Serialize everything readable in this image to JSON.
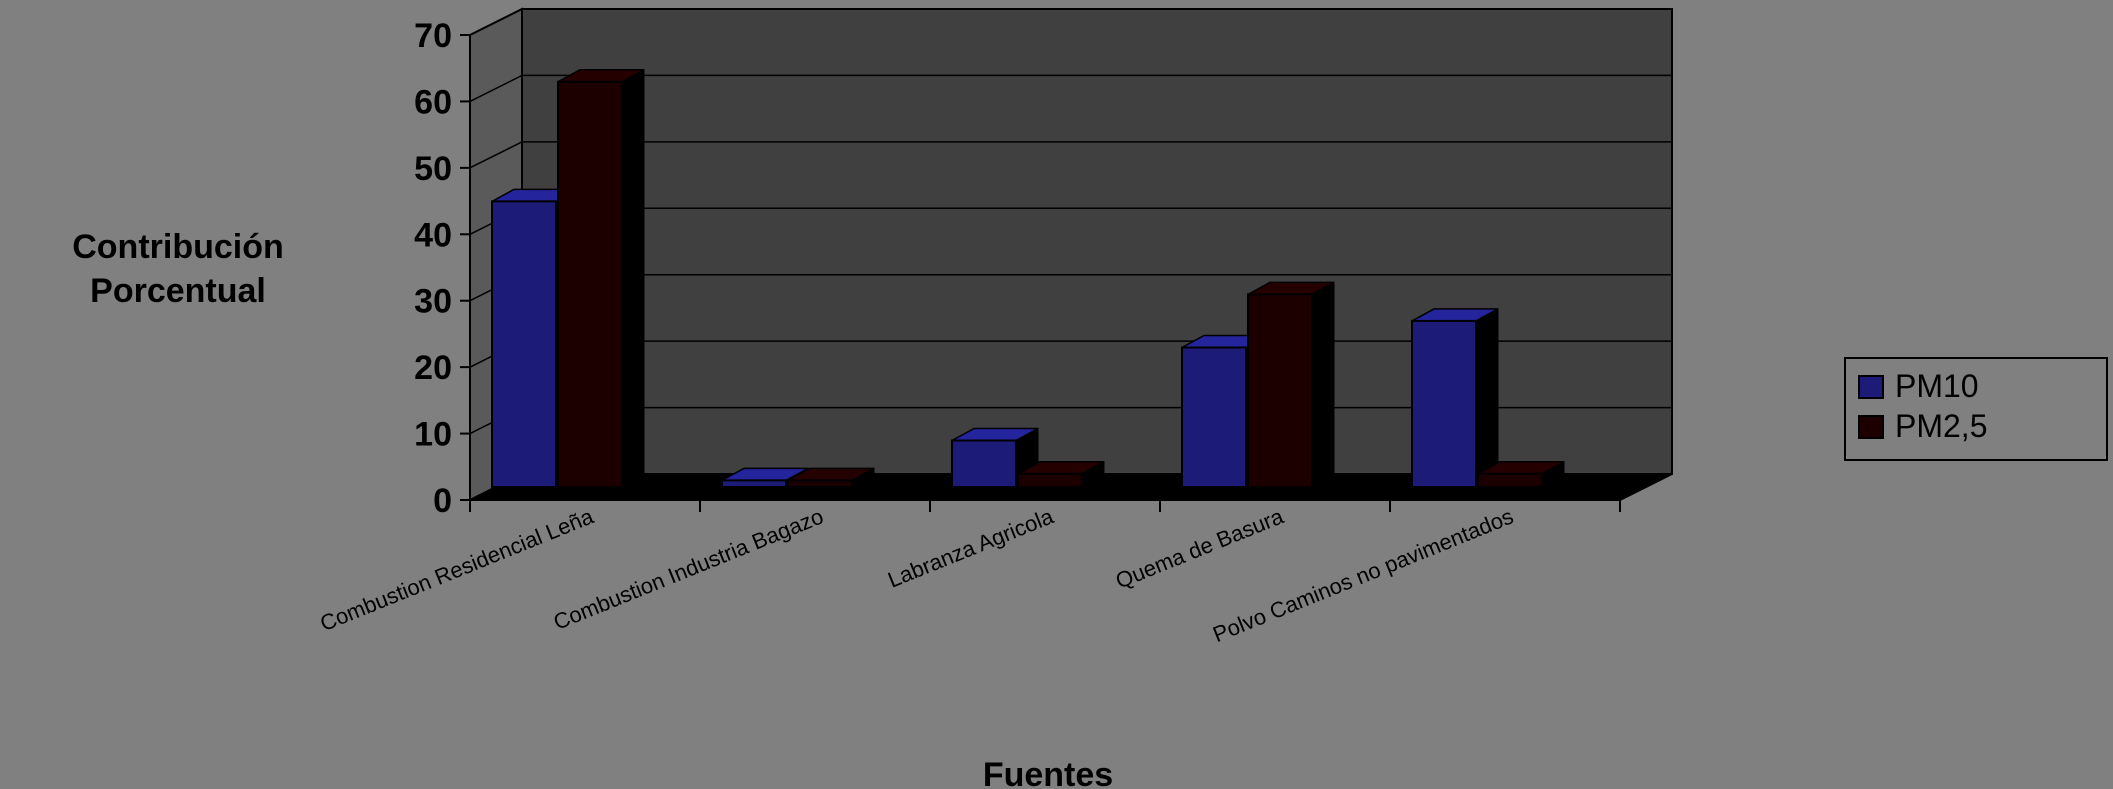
{
  "chart_data": {
    "type": "bar",
    "title": "",
    "ylabel_lines": [
      "Contribución",
      "Porcentual"
    ],
    "xlabel": "Fuentes",
    "categories": [
      "Combustion Residencial Leña",
      "Combustion Industria Bagazo",
      "Labranza Agricola",
      "Quema de Basura",
      "Polvo Caminos no pavimentados"
    ],
    "series": [
      {
        "name": "PM10",
        "values": [
          43,
          1,
          7,
          21,
          25
        ],
        "color": "#1c1c78"
      },
      {
        "name": "PM2,5",
        "values": [
          61,
          1,
          2,
          29,
          2
        ],
        "color": "#1c0000"
      }
    ],
    "ylim": [
      0,
      70
    ],
    "yticks": [
      0,
      10,
      20,
      30,
      40,
      50,
      60,
      70
    ],
    "grid": true,
    "legend_position": "right",
    "plot_background": "#404040",
    "floor_color": "#000000"
  }
}
